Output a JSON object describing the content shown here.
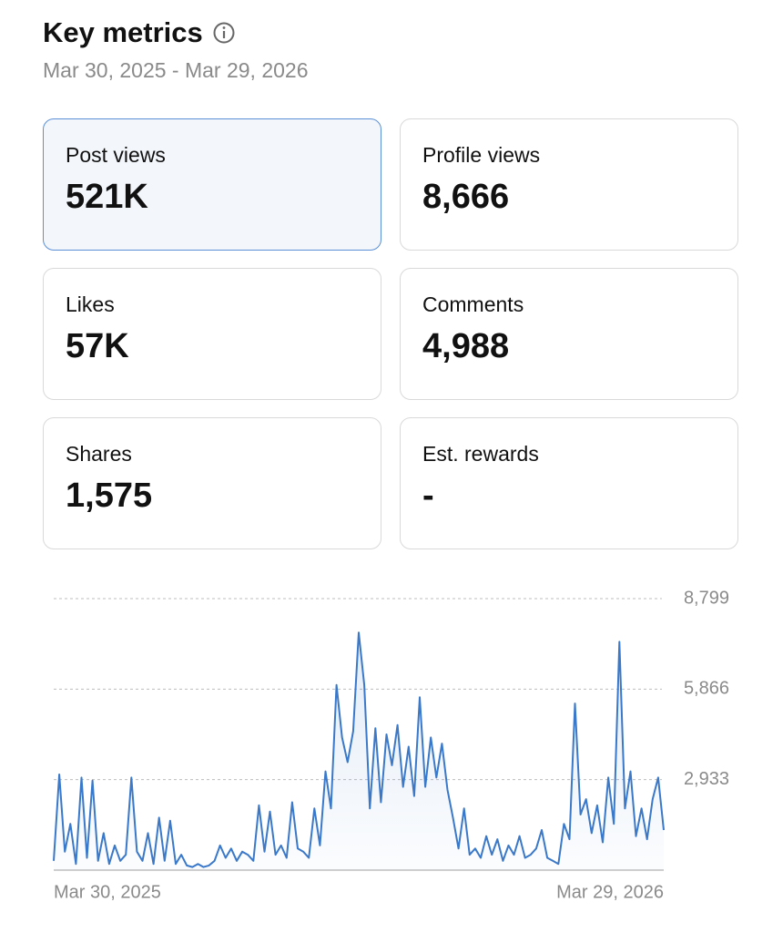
{
  "header": {
    "title": "Key metrics",
    "subtitle": "Mar 30, 2025 - Mar 29, 2026"
  },
  "cards": [
    {
      "label": "Post views",
      "value": "521K"
    },
    {
      "label": "Profile views",
      "value": "8,666"
    },
    {
      "label": "Likes",
      "value": "57K"
    },
    {
      "label": "Comments",
      "value": "4,988"
    },
    {
      "label": "Shares",
      "value": "1,575"
    },
    {
      "label": "Est. rewards",
      "value": "-"
    }
  ],
  "chart_data": {
    "type": "line",
    "categories": [
      "Mar 30, 2025",
      null,
      null,
      null,
      null,
      null,
      null,
      null,
      null,
      null,
      null,
      null,
      null,
      null,
      null,
      null,
      null,
      null,
      null,
      null,
      null,
      null,
      null,
      null,
      null,
      null,
      null,
      null,
      null,
      null,
      null,
      null,
      null,
      null,
      null,
      null,
      null,
      null,
      null,
      null,
      null,
      null,
      null,
      null,
      null,
      null,
      null,
      null,
      null,
      null,
      null,
      null,
      null,
      null,
      null,
      null,
      null,
      null,
      null,
      null,
      null,
      null,
      null,
      null,
      null,
      null,
      null,
      null,
      null,
      null,
      null,
      null,
      null,
      null,
      null,
      null,
      null,
      null,
      null,
      null,
      null,
      null,
      null,
      null,
      null,
      null,
      null,
      null,
      null,
      null,
      null,
      null,
      null,
      null,
      null,
      null,
      null,
      null,
      null,
      null,
      null,
      null,
      null,
      null,
      null,
      null,
      null,
      null,
      null,
      null,
      "Mar 29, 2026"
    ],
    "values": [
      300,
      3100,
      600,
      1500,
      200,
      3000,
      400,
      2900,
      300,
      1200,
      200,
      800,
      300,
      500,
      3000,
      600,
      300,
      1200,
      200,
      1700,
      300,
      1600,
      200,
      500,
      150,
      100,
      200,
      100,
      150,
      300,
      800,
      400,
      700,
      300,
      600,
      500,
      300,
      2100,
      600,
      1900,
      500,
      800,
      400,
      2200,
      700,
      600,
      400,
      2000,
      800,
      3200,
      2000,
      6000,
      4300,
      3500,
      4500,
      7700,
      6000,
      2000,
      4600,
      2200,
      4400,
      3400,
      4700,
      2700,
      4000,
      2400,
      5600,
      2700,
      4300,
      3000,
      4100,
      2600,
      1700,
      700,
      2000,
      500,
      700,
      400,
      1100,
      500,
      1000,
      300,
      800,
      500,
      1100,
      400,
      500,
      700,
      1300,
      400,
      300,
      200,
      1500,
      1000,
      5400,
      1800,
      2300,
      1200,
      2100,
      900,
      3000,
      1500,
      7400,
      2000,
      3200,
      1100,
      2000,
      1000,
      2300,
      3000,
      1300
    ],
    "color": "#3a78c9",
    "ylim": [
      0,
      8799
    ],
    "yticks": [
      {
        "value": 2933,
        "label": "2,933"
      },
      {
        "value": 5866,
        "label": "5,866"
      },
      {
        "value": 8799,
        "label": "8,799"
      }
    ],
    "grid": true
  }
}
